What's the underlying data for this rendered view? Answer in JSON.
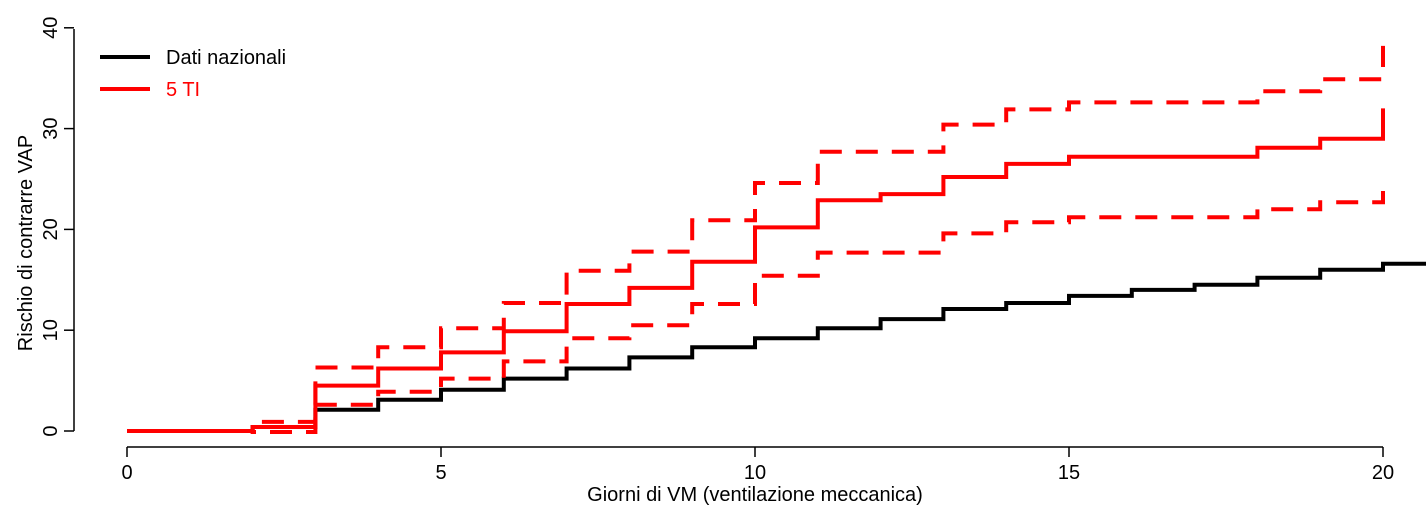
{
  "chart_data": {
    "type": "line",
    "step": true,
    "xlabel": "Giorni di VM (ventilazione meccanica)",
    "ylabel": "Rischio di contrarre VAP",
    "xlim": [
      -0.8,
      20.7
    ],
    "ylim": [
      -1.5,
      40
    ],
    "x_ticks": [
      0,
      5,
      10,
      15,
      20
    ],
    "y_ticks": [
      0,
      10,
      20,
      30,
      40
    ],
    "grid": false,
    "legend_position": "top-left",
    "series": [
      {
        "name": "Dati nazionali",
        "color": "#000000",
        "dash": "solid",
        "points": [
          [
            0,
            0
          ],
          [
            2,
            0
          ],
          [
            2,
            0.4
          ],
          [
            3,
            0.4
          ],
          [
            3,
            2.1
          ],
          [
            4,
            2.1
          ],
          [
            4,
            3.1
          ],
          [
            5,
            3.1
          ],
          [
            5,
            4.1
          ],
          [
            6,
            4.1
          ],
          [
            6,
            5.2
          ],
          [
            7,
            5.2
          ],
          [
            7,
            6.2
          ],
          [
            8,
            6.2
          ],
          [
            8,
            7.3
          ],
          [
            9,
            7.3
          ],
          [
            9,
            8.3
          ],
          [
            10,
            8.3
          ],
          [
            10,
            9.2
          ],
          [
            11,
            9.2
          ],
          [
            11,
            10.2
          ],
          [
            12,
            10.2
          ],
          [
            12,
            11.1
          ],
          [
            13,
            11.1
          ],
          [
            13,
            12.1
          ],
          [
            14,
            12.1
          ],
          [
            14,
            12.7
          ],
          [
            15,
            12.7
          ],
          [
            15,
            13.4
          ],
          [
            16,
            13.4
          ],
          [
            16,
            14.0
          ],
          [
            17,
            14.0
          ],
          [
            17,
            14.5
          ],
          [
            18,
            14.5
          ],
          [
            18,
            15.2
          ],
          [
            19,
            15.2
          ],
          [
            19,
            16.0
          ],
          [
            20,
            16.0
          ],
          [
            20,
            16.6
          ],
          [
            20.7,
            16.6
          ]
        ]
      },
      {
        "name": "5 TI",
        "color": "#ff0000",
        "dash": "solid",
        "points": [
          [
            0,
            0
          ],
          [
            2,
            0
          ],
          [
            2,
            0.4
          ],
          [
            3,
            0.4
          ],
          [
            3,
            4.5
          ],
          [
            4,
            4.5
          ],
          [
            4,
            6.2
          ],
          [
            5,
            6.2
          ],
          [
            5,
            7.8
          ],
          [
            6,
            7.8
          ],
          [
            6,
            9.9
          ],
          [
            7,
            9.9
          ],
          [
            7,
            12.6
          ],
          [
            8,
            12.6
          ],
          [
            8,
            14.2
          ],
          [
            9,
            14.2
          ],
          [
            9,
            16.8
          ],
          [
            10,
            16.8
          ],
          [
            10,
            20.2
          ],
          [
            11,
            20.2
          ],
          [
            11,
            22.9
          ],
          [
            12,
            22.9
          ],
          [
            12,
            23.5
          ],
          [
            13,
            23.5
          ],
          [
            13,
            25.2
          ],
          [
            14,
            25.2
          ],
          [
            14,
            26.5
          ],
          [
            15,
            26.5
          ],
          [
            15,
            27.2
          ],
          [
            18,
            27.2
          ],
          [
            18,
            28.1
          ],
          [
            19,
            28.1
          ],
          [
            19,
            29.0
          ],
          [
            20,
            29.0
          ],
          [
            20,
            32.0
          ]
        ]
      },
      {
        "color": "#ff0000",
        "dash": "dashed",
        "points": [
          [
            0,
            0
          ],
          [
            2,
            0
          ],
          [
            2,
            0.9
          ],
          [
            3,
            0.9
          ],
          [
            3,
            6.3
          ],
          [
            4,
            6.3
          ],
          [
            4,
            8.3
          ],
          [
            5,
            8.3
          ],
          [
            5,
            10.2
          ],
          [
            6,
            10.2
          ],
          [
            6,
            12.7
          ],
          [
            7,
            12.7
          ],
          [
            7,
            15.9
          ],
          [
            8,
            15.9
          ],
          [
            8,
            17.8
          ],
          [
            9,
            17.8
          ],
          [
            9,
            20.9
          ],
          [
            10,
            20.9
          ],
          [
            10,
            24.6
          ],
          [
            11,
            24.6
          ],
          [
            11,
            27.7
          ],
          [
            13,
            27.7
          ],
          [
            13,
            30.4
          ],
          [
            14,
            30.4
          ],
          [
            14,
            31.9
          ],
          [
            15,
            31.9
          ],
          [
            15,
            32.6
          ],
          [
            18,
            32.6
          ],
          [
            18,
            33.7
          ],
          [
            19,
            33.7
          ],
          [
            19,
            34.9
          ],
          [
            20,
            34.9
          ],
          [
            20,
            38.2
          ]
        ]
      },
      {
        "color": "#ff0000",
        "dash": "dashed",
        "points": [
          [
            0,
            0
          ],
          [
            2,
            0
          ],
          [
            2,
            -0.1
          ],
          [
            3,
            -0.1
          ],
          [
            3,
            2.6
          ],
          [
            4,
            2.6
          ],
          [
            4,
            3.9
          ],
          [
            5,
            3.9
          ],
          [
            5,
            5.2
          ],
          [
            6,
            5.2
          ],
          [
            6,
            6.9
          ],
          [
            7,
            6.9
          ],
          [
            7,
            9.2
          ],
          [
            8,
            9.2
          ],
          [
            8,
            10.5
          ],
          [
            9,
            10.5
          ],
          [
            9,
            12.6
          ],
          [
            10,
            12.6
          ],
          [
            10,
            15.4
          ],
          [
            11,
            15.4
          ],
          [
            11,
            17.7
          ],
          [
            13,
            17.7
          ],
          [
            13,
            19.6
          ],
          [
            14,
            19.6
          ],
          [
            14,
            20.7
          ],
          [
            15,
            20.7
          ],
          [
            15,
            21.2
          ],
          [
            18,
            21.2
          ],
          [
            18,
            22.0
          ],
          [
            19,
            22.0
          ],
          [
            19,
            22.7
          ],
          [
            20,
            22.7
          ],
          [
            20,
            25.0
          ]
        ]
      }
    ]
  }
}
